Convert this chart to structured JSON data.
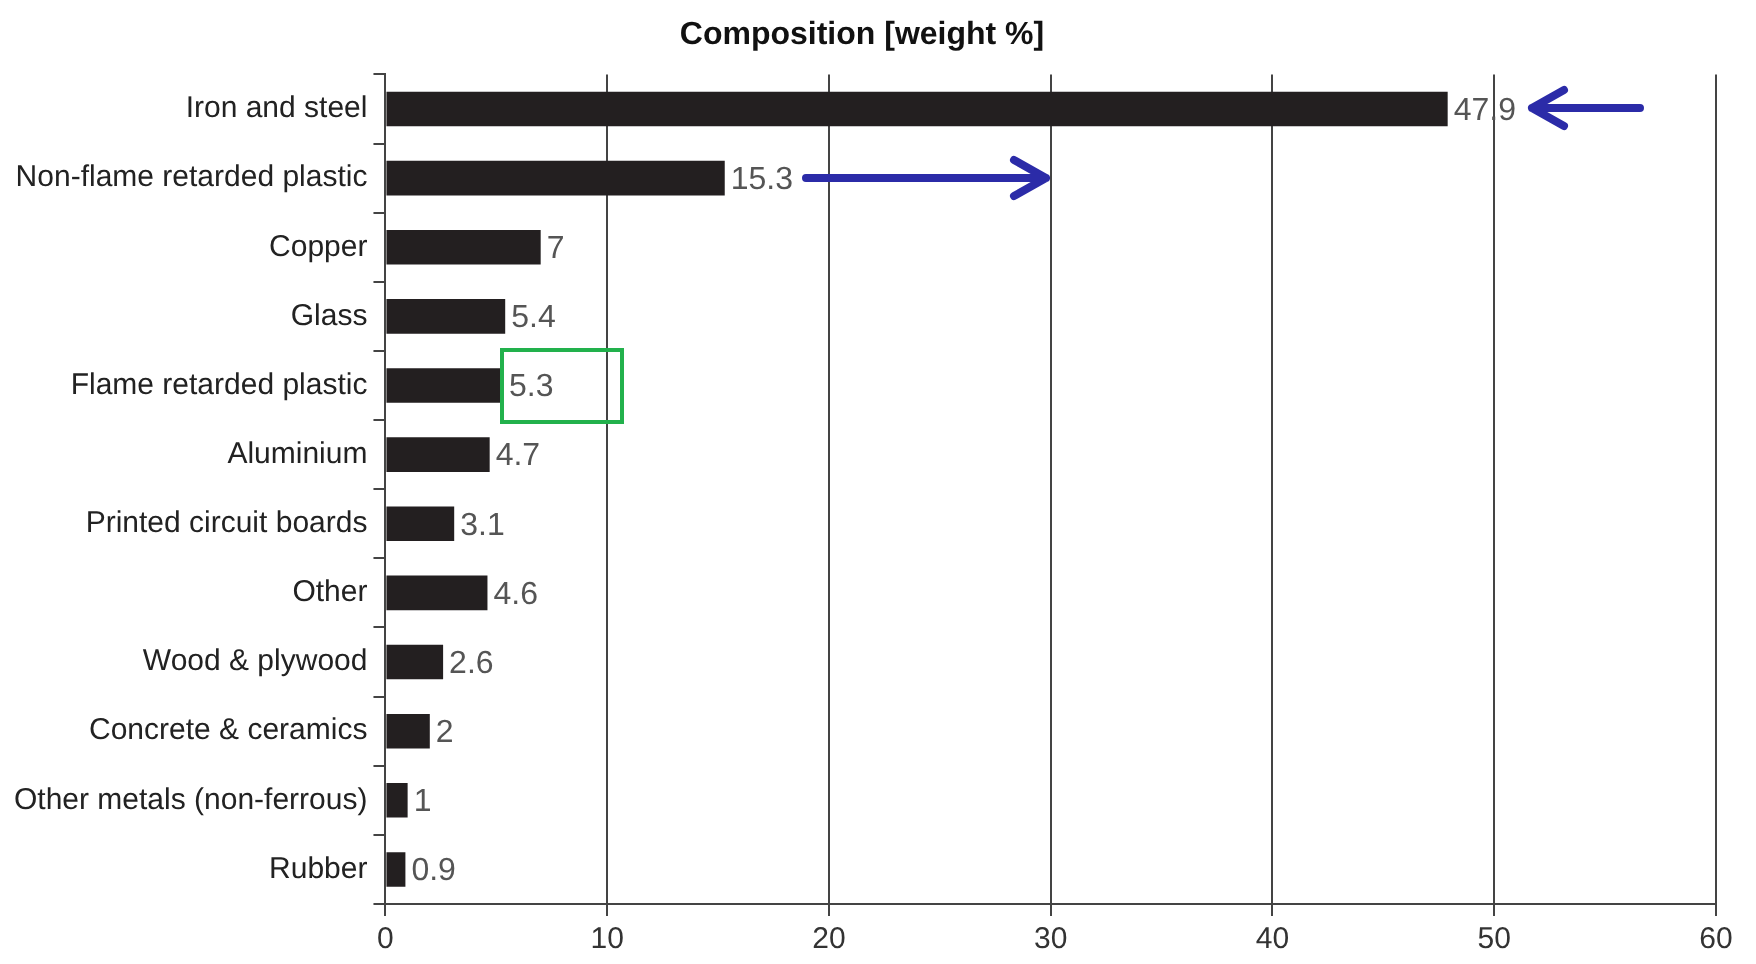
{
  "chart_data": {
    "type": "bar",
    "orientation": "horizontal",
    "title": "Composition [weight %]",
    "categories": [
      "Iron and steel",
      "Non-flame retarded plastic",
      "Copper",
      "Glass",
      "Flame retarded plastic",
      "Aluminium",
      "Printed circuit boards",
      "Other",
      "Wood & plywood",
      "Concrete & ceramics",
      "Other metals (non-ferrous)",
      "Rubber"
    ],
    "values": [
      47.9,
      15.3,
      7,
      5.4,
      5.3,
      4.7,
      3.1,
      4.6,
      2.6,
      2,
      1,
      0.9
    ],
    "color": "#231f20",
    "xlim": [
      0,
      60
    ],
    "xticks": [
      0,
      10,
      20,
      30,
      40,
      50,
      60
    ],
    "grid": "x",
    "data_labels": true,
    "legend": false
  }
}
